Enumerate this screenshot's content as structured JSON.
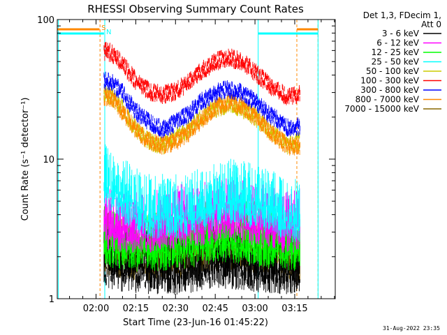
{
  "chart_data": {
    "type": "line",
    "title": "RHESSI Observing Summary Count Rates",
    "xlabel": "Start Time (23-Jun-16 01:45:22)",
    "ylabel": "Count Rate (s⁻¹ detector⁻¹)",
    "yscale": "log",
    "ylim": [
      1,
      100
    ],
    "xlim_minutes": [
      -14.63,
      90.3
    ],
    "x_ticks": [
      {
        "label": "02:00",
        "minutes": 0
      },
      {
        "label": "02:15",
        "minutes": 15
      },
      {
        "label": "02:30",
        "minutes": 30
      },
      {
        "label": "02:45",
        "minutes": 45
      },
      {
        "label": "03:00",
        "minutes": 60
      },
      {
        "label": "03:15",
        "minutes": 75
      }
    ],
    "y_ticks": [
      {
        "label": "1",
        "value": 1
      },
      {
        "label": "10",
        "value": 10
      },
      {
        "label": "100",
        "value": 100
      }
    ],
    "legend_header": [
      "Det 1,3, FDecim 1,",
      "Att 0"
    ],
    "legend_position": "right",
    "series": [
      {
        "name": "3 - 6 keV",
        "color": "#000000",
        "x": [
          3,
          10,
          20,
          30,
          40,
          50,
          60,
          70,
          77
        ],
        "values": [
          2.2,
          2.1,
          2.0,
          2.0,
          2.1,
          2.2,
          2.1,
          2.0,
          2.0
        ]
      },
      {
        "name": "6 - 12 keV",
        "color": "#ff00ff",
        "x": [
          3,
          10,
          20,
          30,
          40,
          50,
          60,
          70,
          77
        ],
        "values": [
          4.2,
          4.0,
          4.0,
          4.2,
          4.5,
          4.8,
          4.5,
          4.0,
          4.0
        ]
      },
      {
        "name": "12 - 25 keV",
        "color": "#00ff00",
        "x": [
          3,
          10,
          20,
          30,
          40,
          50,
          60,
          70,
          77
        ],
        "values": [
          3.2,
          3.0,
          2.9,
          3.0,
          3.2,
          3.4,
          3.2,
          3.0,
          2.9
        ]
      },
      {
        "name": "25 - 50 keV",
        "color": "#00ffff",
        "x": [
          3,
          10,
          20,
          30,
          40,
          50,
          60,
          70,
          77
        ],
        "values": [
          8.5,
          6.5,
          5.0,
          5.0,
          5.5,
          6.5,
          6.0,
          5.0,
          4.5
        ]
      },
      {
        "name": "50 - 100 keV",
        "color": "#cccc00",
        "x": [
          3,
          6,
          10,
          15,
          20,
          25,
          30,
          35,
          40,
          45,
          50,
          55,
          60,
          65,
          70,
          73,
          77
        ],
        "values": [
          30,
          29,
          24,
          17,
          14,
          13,
          15,
          17,
          21,
          24,
          26,
          24,
          21,
          17,
          14,
          13,
          14
        ]
      },
      {
        "name": "100 - 300 keV",
        "color": "#ff0000",
        "x": [
          3,
          6,
          10,
          15,
          20,
          25,
          30,
          35,
          40,
          45,
          50,
          55,
          60,
          65,
          70,
          73,
          77
        ],
        "values": [
          62,
          60,
          50,
          38,
          32,
          30,
          32,
          37,
          45,
          52,
          56,
          52,
          44,
          36,
          31,
          29,
          31
        ]
      },
      {
        "name": "300 - 800 keV",
        "color": "#0000ff",
        "x": [
          3,
          6,
          10,
          15,
          20,
          25,
          30,
          35,
          40,
          45,
          50,
          55,
          60,
          65,
          70,
          73,
          77
        ],
        "values": [
          38,
          37,
          31,
          23,
          19,
          17,
          19,
          22,
          27,
          31,
          33,
          31,
          27,
          22,
          19,
          17,
          18
        ]
      },
      {
        "name": "800 - 7000 keV",
        "color": "#ff8800",
        "x": [
          3,
          6,
          10,
          15,
          20,
          25,
          30,
          35,
          40,
          45,
          50,
          55,
          60,
          65,
          70,
          73,
          77
        ],
        "values": [
          29,
          28,
          23,
          17,
          14,
          13,
          14,
          16,
          20,
          24,
          27,
          25,
          21,
          17,
          14,
          13,
          13
        ]
      },
      {
        "name": "7000 - 15000 keV",
        "color": "#886600",
        "x": [
          3,
          10,
          20,
          30,
          40,
          50,
          60,
          70,
          77
        ],
        "values": [
          2.8,
          2.6,
          2.5,
          2.6,
          2.8,
          3.0,
          2.8,
          2.6,
          2.5
        ]
      }
    ],
    "markers": [
      {
        "label": "S",
        "color": "#ff8800",
        "x": 1.5
      },
      {
        "label": "N",
        "color": "#00ffff",
        "x": 3.3
      }
    ],
    "time_stamp": "31-Aug-2022 23:35"
  }
}
